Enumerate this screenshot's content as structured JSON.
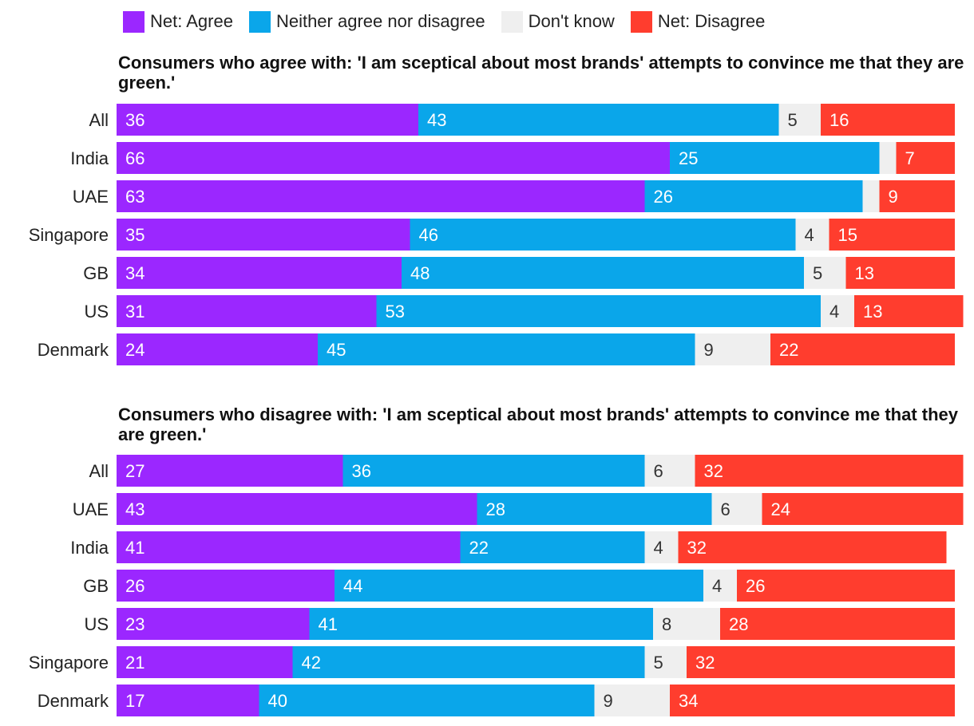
{
  "legend": [
    {
      "name": "Net: Agree",
      "color": "#9b27ff"
    },
    {
      "name": "Neither agree nor disagree",
      "color": "#0aa6ea"
    },
    {
      "name": "Don't know",
      "color": "#efefef"
    },
    {
      "name": "Net: Disagree",
      "color": "#ff3d2e"
    }
  ],
  "chart_data": [
    {
      "type": "bar",
      "orientation": "horizontal-stacked",
      "title": "Consumers who agree with: 'I am sceptical about most brands' attempts to convince me that they are green.'",
      "categories": [
        "All",
        "India",
        "UAE",
        "Singapore",
        "GB",
        "US",
        "Denmark"
      ],
      "series": [
        {
          "name": "Net: Agree",
          "values": [
            36,
            66,
            63,
            35,
            34,
            31,
            24
          ],
          "labels": [
            "36",
            "66",
            "63",
            "35",
            "34",
            "31",
            "24"
          ]
        },
        {
          "name": "Neither agree nor disagree",
          "values": [
            43,
            25,
            26,
            46,
            48,
            53,
            45
          ],
          "labels": [
            "43",
            "25",
            "26",
            "46",
            "48",
            "53",
            "45"
          ]
        },
        {
          "name": "Don't know",
          "values": [
            5,
            2,
            2,
            4,
            5,
            4,
            9
          ],
          "labels": [
            "5",
            "",
            "",
            "4",
            "5",
            "4",
            "9"
          ]
        },
        {
          "name": "Net: Disagree",
          "values": [
            16,
            7,
            9,
            15,
            13,
            13,
            22
          ],
          "labels": [
            "16",
            "7",
            "9",
            "15",
            "13",
            "13",
            "22"
          ]
        }
      ]
    },
    {
      "type": "bar",
      "orientation": "horizontal-stacked",
      "title": "Consumers who disagree with: 'I am sceptical about most brands' attempts to convince me that they are green.'",
      "categories": [
        "All",
        "UAE",
        "India",
        "GB",
        "US",
        "Singapore",
        "Denmark"
      ],
      "series": [
        {
          "name": "Net: Agree",
          "values": [
            27,
            43,
            41,
            26,
            23,
            21,
            17
          ],
          "labels": [
            "27",
            "43",
            "41",
            "26",
            "23",
            "21",
            "17"
          ]
        },
        {
          "name": "Neither agree nor disagree",
          "values": [
            36,
            28,
            22,
            44,
            41,
            42,
            40
          ],
          "labels": [
            "36",
            "28",
            "22",
            "44",
            "41",
            "42",
            "40"
          ]
        },
        {
          "name": "Don't know",
          "values": [
            6,
            6,
            4,
            4,
            8,
            5,
            9
          ],
          "labels": [
            "6",
            "6",
            "4",
            "4",
            "8",
            "5",
            "9"
          ]
        },
        {
          "name": "Net: Disagree",
          "values": [
            32,
            24,
            32,
            26,
            28,
            32,
            34
          ],
          "labels": [
            "32",
            "24",
            "32",
            "26",
            "28",
            "32",
            "34"
          ]
        }
      ]
    }
  ]
}
